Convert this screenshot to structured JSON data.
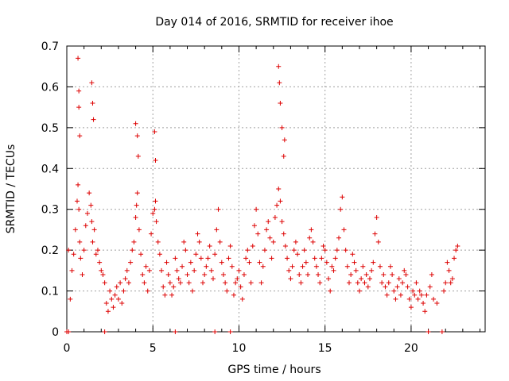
{
  "chart_data": {
    "type": "scatter",
    "title": "Day 014 of 2016, SRMTID for receiver ihoe",
    "xlabel": "GPS time / hours",
    "ylabel": "SRMTID / TECUs",
    "xlim": [
      0,
      24.3
    ],
    "ylim": [
      0,
      0.7
    ],
    "xticks": [
      0,
      5,
      10,
      15,
      20
    ],
    "yticks": [
      0,
      0.1,
      0.2,
      0.3,
      0.4,
      0.5,
      0.6,
      0.7
    ],
    "xtick_labels": [
      "0",
      "5",
      "10",
      "15",
      "20"
    ],
    "ytick_labels": [
      "0",
      "0.1",
      "0.2",
      "0.3",
      "0.4",
      "0.5",
      "0.6",
      "0.7"
    ],
    "grid": true,
    "marker": "plus",
    "color": "#dd0000",
    "x": [
      0.1,
      0.2,
      0.3,
      0.4,
      0.5,
      0.6,
      0.65,
      0.7,
      0.75,
      0.8,
      0.9,
      1.0,
      1.1,
      1.2,
      1.3,
      1.4,
      1.45,
      1.5,
      1.6,
      1.7,
      1.8,
      1.9,
      2.0,
      2.1,
      2.2,
      2.3,
      2.4,
      2.5,
      2.6,
      2.7,
      2.8,
      2.9,
      3.0,
      3.1,
      3.2,
      3.3,
      3.4,
      3.5,
      3.6,
      3.7,
      3.8,
      3.9,
      4.0,
      4.05,
      4.1,
      4.2,
      4.3,
      4.4,
      4.5,
      4.6,
      4.7,
      4.8,
      4.9,
      5.0,
      5.1,
      5.15,
      5.2,
      5.3,
      5.4,
      5.5,
      5.6,
      5.7,
      5.8,
      5.9,
      6.0,
      6.1,
      6.2,
      6.3,
      6.4,
      6.5,
      6.6,
      6.7,
      6.8,
      6.9,
      7.0,
      7.1,
      7.2,
      7.3,
      7.4,
      7.5,
      7.6,
      7.7,
      7.8,
      7.9,
      8.0,
      8.1,
      8.2,
      8.3,
      8.4,
      8.5,
      8.6,
      8.7,
      8.8,
      8.9,
      9.0,
      9.1,
      9.2,
      9.3,
      9.4,
      9.5,
      9.6,
      9.7,
      9.8,
      9.9,
      10.0,
      10.1,
      10.2,
      10.3,
      10.4,
      10.5,
      10.6,
      10.7,
      10.8,
      10.9,
      11.0,
      11.1,
      11.2,
      11.3,
      11.4,
      11.5,
      11.6,
      11.7,
      11.8,
      11.9,
      12.0,
      12.1,
      12.2,
      12.3,
      12.4,
      12.5,
      12.6,
      12.7,
      12.8,
      12.9,
      13.0,
      13.1,
      13.2,
      13.3,
      13.4,
      13.5,
      13.6,
      13.7,
      13.8,
      13.9,
      14.0,
      14.1,
      14.2,
      14.3,
      14.4,
      14.5,
      14.6,
      14.7,
      14.8,
      14.9,
      15.0,
      15.1,
      15.2,
      15.3,
      15.4,
      15.5,
      15.6,
      15.7,
      15.8,
      15.9,
      16.0,
      16.1,
      16.2,
      16.3,
      16.4,
      16.5,
      16.6,
      16.7,
      16.8,
      16.9,
      17.0,
      17.1,
      17.2,
      17.3,
      17.4,
      17.5,
      17.6,
      17.7,
      17.8,
      17.9,
      18.0,
      18.1,
      18.2,
      18.3,
      18.4,
      18.5,
      18.6,
      18.7,
      18.8,
      18.9,
      19.0,
      19.1,
      19.2,
      19.3,
      19.4,
      19.5,
      19.6,
      19.7,
      19.8,
      19.9,
      20.0,
      20.1,
      20.2,
      20.3,
      20.4,
      20.5,
      20.6,
      20.7,
      20.8,
      20.9,
      21.1,
      21.2,
      21.3,
      21.5,
      21.9,
      22.0,
      22.1,
      22.2,
      22.3,
      22.4,
      22.5,
      22.6,
      22.7,
      0.65,
      0.7,
      0.7,
      0.75,
      1.45,
      1.5,
      1.55,
      4.0,
      4.1,
      4.15,
      5.1,
      5.15,
      12.3,
      12.35,
      12.4,
      12.5,
      12.6,
      12.65,
      0.0,
      0.1,
      2.2,
      6.3,
      8.6,
      9.5,
      21.0,
      21.8
    ],
    "y": [
      0.2,
      0.08,
      0.15,
      0.19,
      0.25,
      0.32,
      0.36,
      0.3,
      0.22,
      0.18,
      0.14,
      0.2,
      0.26,
      0.29,
      0.34,
      0.31,
      0.27,
      0.22,
      0.25,
      0.19,
      0.2,
      0.17,
      0.15,
      0.14,
      0.12,
      0.07,
      0.05,
      0.1,
      0.08,
      0.06,
      0.09,
      0.11,
      0.08,
      0.12,
      0.07,
      0.1,
      0.13,
      0.15,
      0.12,
      0.17,
      0.2,
      0.22,
      0.28,
      0.31,
      0.34,
      0.25,
      0.19,
      0.14,
      0.12,
      0.16,
      0.1,
      0.15,
      0.24,
      0.29,
      0.3,
      0.32,
      0.27,
      0.22,
      0.19,
      0.15,
      0.11,
      0.09,
      0.17,
      0.14,
      0.12,
      0.09,
      0.11,
      0.18,
      0.15,
      0.13,
      0.12,
      0.16,
      0.22,
      0.2,
      0.14,
      0.12,
      0.17,
      0.1,
      0.15,
      0.19,
      0.24,
      0.22,
      0.18,
      0.12,
      0.14,
      0.16,
      0.18,
      0.21,
      0.15,
      0.13,
      0.19,
      0.25,
      0.3,
      0.22,
      0.17,
      0.14,
      0.12,
      0.1,
      0.18,
      0.21,
      0.16,
      0.09,
      0.12,
      0.13,
      0.15,
      0.11,
      0.08,
      0.14,
      0.18,
      0.2,
      0.17,
      0.12,
      0.21,
      0.26,
      0.3,
      0.24,
      0.17,
      0.12,
      0.16,
      0.2,
      0.25,
      0.27,
      0.23,
      0.18,
      0.22,
      0.28,
      0.31,
      0.35,
      0.32,
      0.27,
      0.24,
      0.21,
      0.18,
      0.15,
      0.13,
      0.16,
      0.2,
      0.22,
      0.19,
      0.14,
      0.12,
      0.16,
      0.2,
      0.17,
      0.14,
      0.23,
      0.25,
      0.22,
      0.18,
      0.16,
      0.14,
      0.12,
      0.18,
      0.21,
      0.2,
      0.17,
      0.13,
      0.1,
      0.16,
      0.15,
      0.18,
      0.2,
      0.23,
      0.3,
      0.33,
      0.25,
      0.2,
      0.16,
      0.12,
      0.14,
      0.19,
      0.17,
      0.15,
      0.12,
      0.1,
      0.13,
      0.16,
      0.12,
      0.14,
      0.11,
      0.13,
      0.15,
      0.17,
      0.24,
      0.28,
      0.22,
      0.16,
      0.12,
      0.14,
      0.11,
      0.09,
      0.12,
      0.16,
      0.14,
      0.1,
      0.08,
      0.11,
      0.13,
      0.09,
      0.12,
      0.15,
      0.14,
      0.11,
      0.08,
      0.06,
      0.1,
      0.09,
      0.12,
      0.08,
      0.1,
      0.09,
      0.07,
      0.05,
      0.09,
      0.11,
      0.14,
      0.08,
      0.07,
      0.1,
      0.12,
      0.17,
      0.15,
      0.12,
      0.13,
      0.18,
      0.2,
      0.21,
      0.67,
      0.59,
      0.55,
      0.48,
      0.61,
      0.56,
      0.52,
      0.51,
      0.48,
      0.43,
      0.49,
      0.42,
      0.65,
      0.61,
      0.56,
      0.5,
      0.43,
      0.47,
      0.0,
      0.0,
      0.0,
      0.0,
      0.0,
      0.0,
      0.0,
      0.0
    ]
  }
}
